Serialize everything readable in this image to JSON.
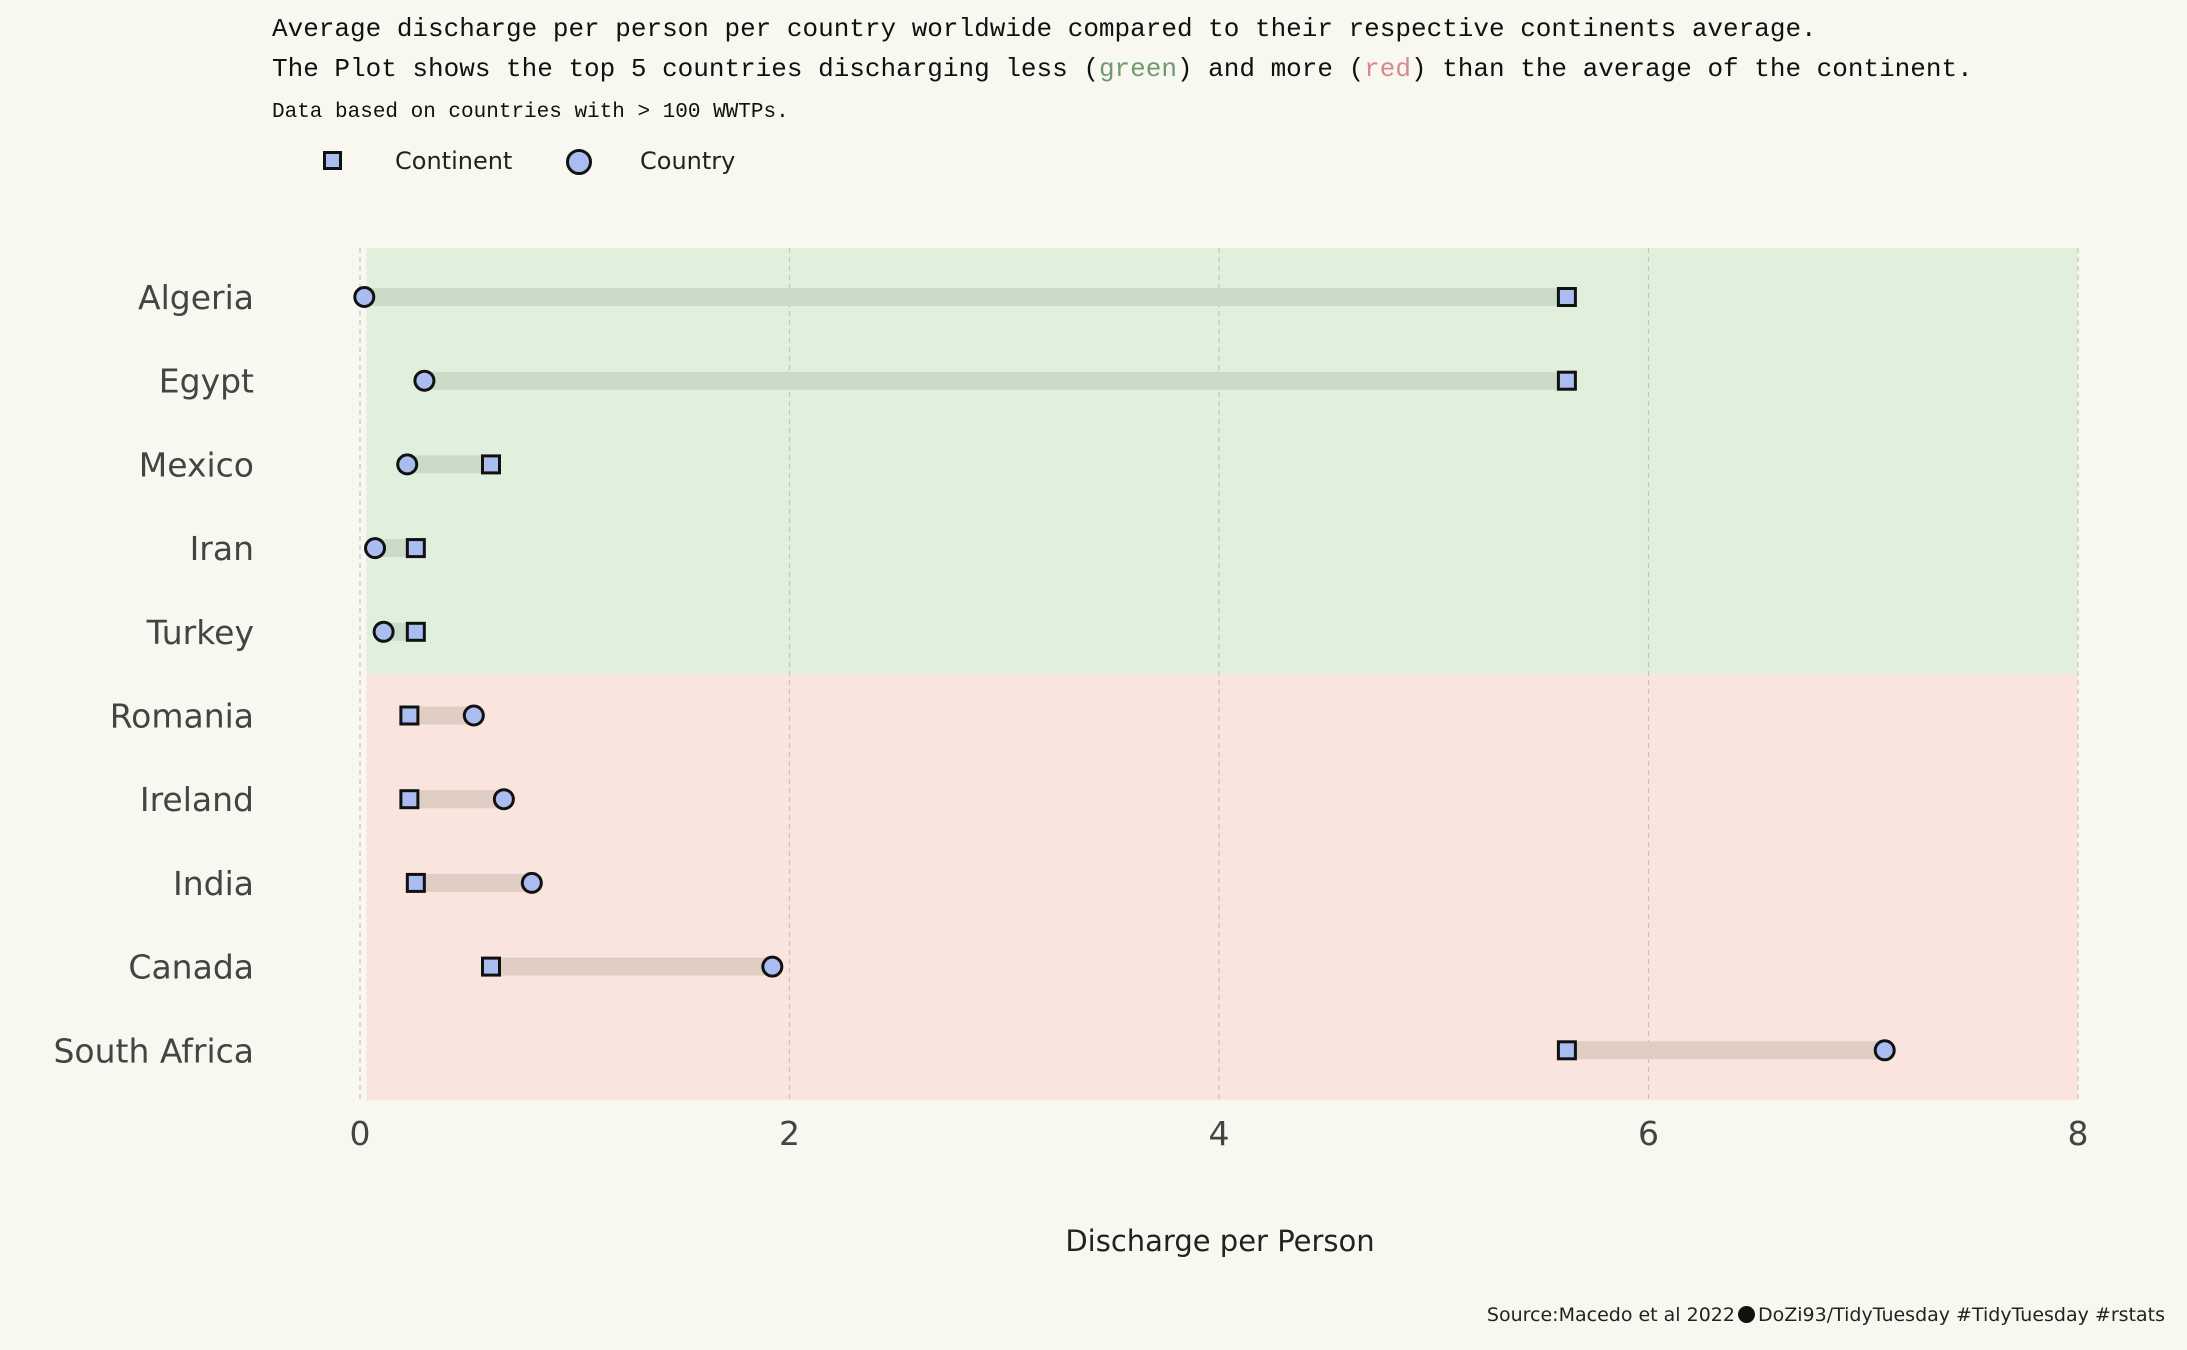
{
  "title": {
    "line1": "Average discharge per person per country worldwide compared to their respective continents average.",
    "line2_prefix": "The Plot shows the top 5 countries discharging less (",
    "line2_green": "green",
    "line2_middle": ") and more (",
    "line2_red": "red",
    "line2_suffix": ") than the average of the continent.",
    "line3": "Data based on countries with > 100 WWTPs."
  },
  "legend": {
    "continent_label": "Continent",
    "country_label": "Country",
    "continent_icon": "square-marker-icon",
    "country_icon": "circle-marker-icon"
  },
  "colors": {
    "background": "#f9f8f0",
    "less_band": "#e1f0dc",
    "more_band": "#f9e5dd",
    "less_segment": "#cbdbc8",
    "more_segment": "#e0cdc4",
    "marker_fill": "#aabdf0",
    "marker_stroke": "#111111",
    "title_green": "#6f9a6f",
    "title_red": "#d98a8a"
  },
  "chart_data": {
    "type": "dumbbell",
    "xlabel": "Discharge per Person",
    "ylabel": "",
    "xlim": [
      0,
      8
    ],
    "x_ticks": [
      0,
      2,
      4,
      6,
      8
    ],
    "grid": "vertical dashed",
    "legend_position": "top-left",
    "series": [
      {
        "name": "Continent"
      },
      {
        "name": "Country"
      }
    ],
    "rows": [
      {
        "country": "Algeria",
        "group": "less",
        "continent": 5.62,
        "country_value": 0.02
      },
      {
        "country": "Egypt",
        "group": "less",
        "continent": 5.62,
        "country_value": 0.3
      },
      {
        "country": "Mexico",
        "group": "less",
        "continent": 0.61,
        "country_value": 0.22
      },
      {
        "country": "Iran",
        "group": "less",
        "continent": 0.26,
        "country_value": 0.07
      },
      {
        "country": "Turkey",
        "group": "less",
        "continent": 0.26,
        "country_value": 0.11
      },
      {
        "country": "Romania",
        "group": "more",
        "continent": 0.23,
        "country_value": 0.53
      },
      {
        "country": "Ireland",
        "group": "more",
        "continent": 0.23,
        "country_value": 0.67
      },
      {
        "country": "India",
        "group": "more",
        "continent": 0.26,
        "country_value": 0.8
      },
      {
        "country": "Canada",
        "group": "more",
        "continent": 0.61,
        "country_value": 1.92
      },
      {
        "country": "South Africa",
        "group": "more",
        "continent": 5.62,
        "country_value": 7.1
      }
    ]
  },
  "caption": {
    "source": "Source:Macedo et al 2022",
    "icon": "github-icon",
    "handle": "DoZi93/TidyTuesday #TidyTuesday #rstats"
  }
}
